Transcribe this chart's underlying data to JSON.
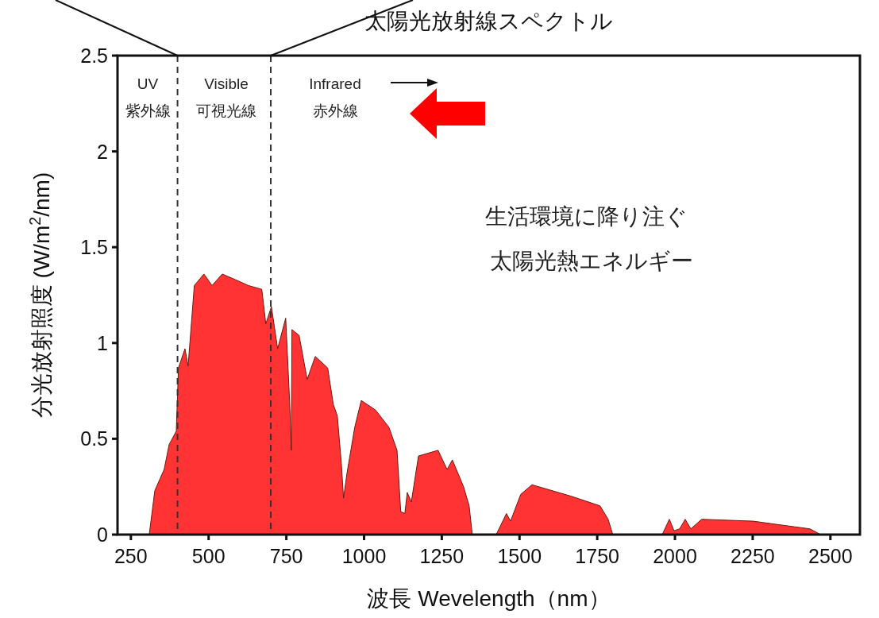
{
  "chart_data": {
    "type": "area",
    "title": "太陽光放射線スペクトル",
    "xlabel": "波長 Wevelength（nm）",
    "ylabel": "分光放射照度 (W/m$^{2}$/nm)",
    "xlim": [
      207,
      2595
    ],
    "xticks": [
      250,
      500,
      750,
      1000,
      1250,
      1500,
      1750,
      2000,
      2250,
      2500
    ],
    "ylim": [
      0,
      2.5
    ],
    "yticks": [
      0,
      0.5,
      1,
      1.5,
      2,
      2.5
    ],
    "series": [
      {
        "color": "#ff3333",
        "x": [
          309,
          327,
          357,
          373,
          396,
          403,
          424,
          434,
          454,
          485,
          511,
          544,
          587,
          628,
          671,
          684,
          702,
          722,
          748,
          761,
          766,
          768,
          791,
          817,
          843,
          883,
          901,
          914,
          927,
          934,
          945,
          970,
          991,
          1037,
          1080,
          1106,
          1118,
          1131,
          1139,
          1152,
          1175,
          1238,
          1267,
          1284,
          1320,
          1338,
          1348,
          1425,
          1458,
          1471,
          1504,
          1540,
          1667,
          1759,
          1785,
          1800,
          1959,
          1982,
          1997,
          2015,
          2033,
          2051,
          2086,
          2252,
          2342,
          2434,
          2469
        ],
        "values": [
          0,
          0.23,
          0.34,
          0.47,
          0.54,
          0.87,
          0.97,
          0.88,
          1.3,
          1.36,
          1.3,
          1.36,
          1.33,
          1.3,
          1.28,
          1.1,
          1.19,
          0.97,
          1.13,
          0.68,
          0.44,
          1.07,
          1.04,
          0.81,
          0.93,
          0.87,
          0.68,
          0.62,
          0.37,
          0.19,
          0.32,
          0.56,
          0.7,
          0.65,
          0.56,
          0.44,
          0.12,
          0.11,
          0.22,
          0.17,
          0.41,
          0.44,
          0.34,
          0.39,
          0.25,
          0.15,
          0,
          0,
          0.11,
          0.07,
          0.21,
          0.26,
          0.2,
          0.15,
          0.08,
          0,
          0,
          0.08,
          0.02,
          0.03,
          0.08,
          0.03,
          0.08,
          0.07,
          0.05,
          0.03,
          0
        ]
      }
    ],
    "ref_lines": [
      {
        "axis": "x",
        "value": 400,
        "line_style": "dashed",
        "color": "#333333"
      },
      {
        "axis": "x",
        "value": 700,
        "line_style": "dashed",
        "color": "#333333"
      }
    ],
    "annotations": [
      "UV",
      "紫外線",
      "Visible",
      "可視光線",
      "Infrared",
      "赤外線",
      "生活環境に降り注ぐ",
      "太陽光熱エネルギー"
    ]
  }
}
